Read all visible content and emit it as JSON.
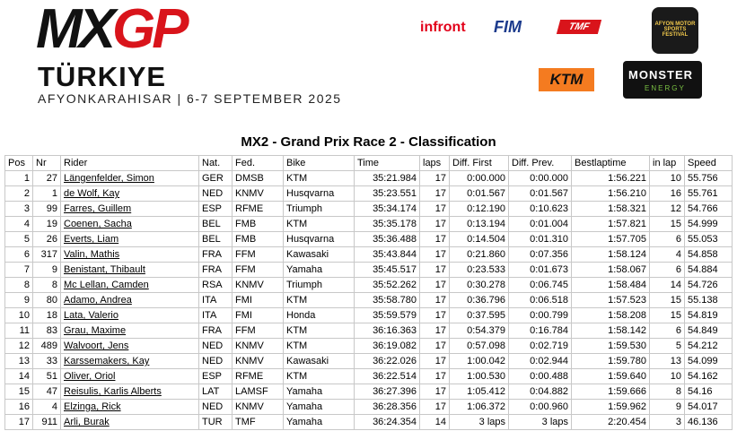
{
  "header": {
    "logo": {
      "mx": "MX",
      "gp": "GP"
    },
    "country": "TÜRKIYE",
    "venue": "AFYONKARAHISAR | 6-7 SEPTEMBER 2025",
    "sponsors": {
      "infront": "infront",
      "fim": "FIM",
      "tmf": "TMF",
      "festival": "AFYON MOTOR SPORTS FESTIVAL",
      "ktm": "KTM",
      "monster": "MONSTER",
      "energy": "ENERGY"
    }
  },
  "title": "MX2 - Grand Prix Race 2 - Classification",
  "table": {
    "columns": [
      "Pos",
      "Nr",
      "Rider",
      "Nat.",
      "Fed.",
      "Bike",
      "Time",
      "laps",
      "Diff. First",
      "Diff. Prev.",
      "Bestlaptime",
      "in lap",
      "Speed"
    ],
    "rows": [
      [
        "1",
        "27",
        "Längenfelder, Simon",
        "GER",
        "DMSB",
        "KTM",
        "35:21.984",
        "17",
        "0:00.000",
        "0:00.000",
        "1:56.221",
        "10",
        "55.756"
      ],
      [
        "2",
        "1",
        "de Wolf, Kay",
        "NED",
        "KNMV",
        "Husqvarna",
        "35:23.551",
        "17",
        "0:01.567",
        "0:01.567",
        "1:56.210",
        "16",
        "55.761"
      ],
      [
        "3",
        "99",
        "Farres, Guillem",
        "ESP",
        "RFME",
        "Triumph",
        "35:34.174",
        "17",
        "0:12.190",
        "0:10.623",
        "1:58.321",
        "12",
        "54.766"
      ],
      [
        "4",
        "19",
        "Coenen, Sacha",
        "BEL",
        "FMB",
        "KTM",
        "35:35.178",
        "17",
        "0:13.194",
        "0:01.004",
        "1:57.821",
        "15",
        "54.999"
      ],
      [
        "5",
        "26",
        "Everts, Liam",
        "BEL",
        "FMB",
        "Husqvarna",
        "35:36.488",
        "17",
        "0:14.504",
        "0:01.310",
        "1:57.705",
        "6",
        "55.053"
      ],
      [
        "6",
        "317",
        "Valin, Mathis",
        "FRA",
        "FFM",
        "Kawasaki",
        "35:43.844",
        "17",
        "0:21.860",
        "0:07.356",
        "1:58.124",
        "4",
        "54.858"
      ],
      [
        "7",
        "9",
        "Benistant, Thibault",
        "FRA",
        "FFM",
        "Yamaha",
        "35:45.517",
        "17",
        "0:23.533",
        "0:01.673",
        "1:58.067",
        "6",
        "54.884"
      ],
      [
        "8",
        "8",
        "Mc Lellan, Camden",
        "RSA",
        "KNMV",
        "Triumph",
        "35:52.262",
        "17",
        "0:30.278",
        "0:06.745",
        "1:58.484",
        "14",
        "54.726"
      ],
      [
        "9",
        "80",
        "Adamo, Andrea",
        "ITA",
        "FMI",
        "KTM",
        "35:58.780",
        "17",
        "0:36.796",
        "0:06.518",
        "1:57.523",
        "15",
        "55.138"
      ],
      [
        "10",
        "18",
        "Lata, Valerio",
        "ITA",
        "FMI",
        "Honda",
        "35:59.579",
        "17",
        "0:37.595",
        "0:00.799",
        "1:58.208",
        "15",
        "54.819"
      ],
      [
        "11",
        "83",
        "Grau, Maxime",
        "FRA",
        "FFM",
        "KTM",
        "36:16.363",
        "17",
        "0:54.379",
        "0:16.784",
        "1:58.142",
        "6",
        "54.849"
      ],
      [
        "12",
        "489",
        "Walvoort, Jens",
        "NED",
        "KNMV",
        "KTM",
        "36:19.082",
        "17",
        "0:57.098",
        "0:02.719",
        "1:59.530",
        "5",
        "54.212"
      ],
      [
        "13",
        "33",
        "Karssemakers, Kay",
        "NED",
        "KNMV",
        "Kawasaki",
        "36:22.026",
        "17",
        "1:00.042",
        "0:02.944",
        "1:59.780",
        "13",
        "54.099"
      ],
      [
        "14",
        "51",
        "Oliver, Oriol",
        "ESP",
        "RFME",
        "KTM",
        "36:22.514",
        "17",
        "1:00.530",
        "0:00.488",
        "1:59.640",
        "10",
        "54.162"
      ],
      [
        "15",
        "47",
        "Reisulis, Karlis Alberts",
        "LAT",
        "LAMSF",
        "Yamaha",
        "36:27.396",
        "17",
        "1:05.412",
        "0:04.882",
        "1:59.666",
        "8",
        "54.16"
      ],
      [
        "16",
        "4",
        "Elzinga, Rick",
        "NED",
        "KNMV",
        "Yamaha",
        "36:28.356",
        "17",
        "1:06.372",
        "0:00.960",
        "1:59.962",
        "9",
        "54.017"
      ],
      [
        "17",
        "911",
        "Arli, Burak",
        "TUR",
        "TMF",
        "Yamaha",
        "36:24.354",
        "14",
        "3 laps",
        "3 laps",
        "2:20.454",
        "3",
        "46.136"
      ]
    ]
  }
}
